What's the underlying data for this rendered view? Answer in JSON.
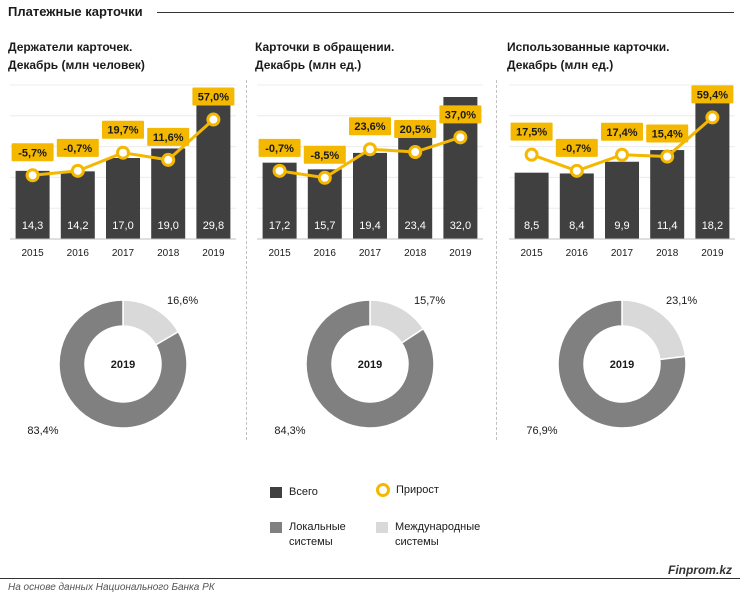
{
  "page": {
    "title": "Платежные карточки",
    "source": "На основе данных Национального Банка РК",
    "brand": "Finprom.kz"
  },
  "colors": {
    "bar": "#404040",
    "line": "#f5b800",
    "label_bg": "#f5b800",
    "donut_local": "#808080",
    "donut_international": "#d9d9d9"
  },
  "legend": {
    "total": "Всего",
    "growth": "Прирост",
    "local": "Локальные системы",
    "international": "Международные системы"
  },
  "chart_data": [
    {
      "type": "bar",
      "title_line1": "Держатели карточек.",
      "title_line2": "Декабрь (млн человек)",
      "categories": [
        "2015",
        "2016",
        "2017",
        "2018",
        "2019"
      ],
      "values": [
        14.3,
        14.2,
        17.0,
        19.0,
        29.8
      ],
      "value_labels": [
        "14,3",
        "14,2",
        "17,0",
        "19,0",
        "29,8"
      ],
      "growth": [
        -5.7,
        -0.7,
        19.7,
        11.6,
        57.0
      ],
      "growth_labels": [
        "-5,7%",
        "-0,7%",
        "19,7%",
        "11,6%",
        "57,0%"
      ],
      "donut": {
        "center_label": "2019",
        "local": 83.4,
        "international": 16.6,
        "local_label": "83,4%",
        "international_label": "16,6%"
      }
    },
    {
      "type": "bar",
      "title_line1": "Карточки  в обращении.",
      "title_line2": "Декабрь (млн ед.)",
      "categories": [
        "2015",
        "2016",
        "2017",
        "2018",
        "2019"
      ],
      "values": [
        17.2,
        15.7,
        19.4,
        23.4,
        32.0
      ],
      "value_labels": [
        "17,2",
        "15,7",
        "19,4",
        "23,4",
        "32,0"
      ],
      "growth": [
        -0.7,
        -8.5,
        23.6,
        20.5,
        37.0
      ],
      "growth_labels": [
        "-0,7%",
        "-8,5%",
        "23,6%",
        "20,5%",
        "37,0%"
      ],
      "donut": {
        "center_label": "2019",
        "local": 84.3,
        "international": 15.7,
        "local_label": "84,3%",
        "international_label": "15,7%"
      }
    },
    {
      "type": "bar",
      "title_line1": "Использованные  карточки.",
      "title_line2": "Декабрь (млн ед.)",
      "categories": [
        "2015",
        "2016",
        "2017",
        "2018",
        "2019"
      ],
      "values": [
        8.5,
        8.4,
        9.9,
        11.4,
        18.2
      ],
      "value_labels": [
        "8,5",
        "8,4",
        "9,9",
        "11,4",
        "18,2"
      ],
      "growth": [
        17.5,
        -0.7,
        17.4,
        15.4,
        59.4
      ],
      "growth_labels": [
        "17,5%",
        "-0,7%",
        "17,4%",
        "15,4%",
        "59,4%"
      ],
      "donut": {
        "center_label": "2019",
        "local": 76.9,
        "international": 23.1,
        "local_label": "76,9%",
        "international_label": "23,1%"
      }
    }
  ]
}
